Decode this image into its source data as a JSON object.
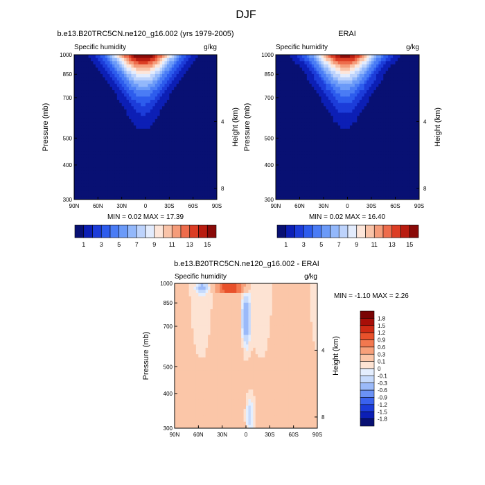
{
  "figure": {
    "title": "DJF"
  },
  "colors": {
    "abs_scale": [
      "#081073",
      "#0c1fb5",
      "#1c3cd9",
      "#2d5ced",
      "#4a7cf5",
      "#6b9af8",
      "#93b8fb",
      "#bdd3fc",
      "#e3ecfd",
      "#fde6da",
      "#f9c3a8",
      "#f59c7a",
      "#ee6c4c",
      "#dc3d24",
      "#b91c10",
      "#8a0a08"
    ],
    "diff_scale": [
      "#081073",
      "#0c1fb5",
      "#1c3cd9",
      "#3a62ee",
      "#6b92f6",
      "#9bbaf9",
      "#c6dafc",
      "#e4eefe",
      "#fde3d3",
      "#fbc6a8",
      "#f7a07a",
      "#f2784f",
      "#e8512b",
      "#cf2a14",
      "#a80e08",
      "#7a0404"
    ]
  },
  "chart_data": [
    {
      "type": "heatmap",
      "title": "b.e13.B20TRC5CN.ne120_g16.002 (yrs 1979-2005)",
      "left_label": "Specific humidity",
      "right_label": "g/kg",
      "ylabel": "Pressure (mb)",
      "ylabel_right": "Height (km)",
      "x_ticks": [
        "90N",
        "60N",
        "30N",
        "0",
        "30S",
        "60S",
        "90S"
      ],
      "xlim": [
        90,
        -90
      ],
      "y_ticks": [
        "300",
        "400",
        "500",
        "700",
        "850",
        "1000"
      ],
      "y_tick_values": [
        300,
        400,
        500,
        700,
        850,
        1000
      ],
      "ylim": [
        1000,
        300
      ],
      "height_ticks": [
        "8",
        "4"
      ],
      "height_tick_values": [
        8,
        4
      ],
      "stats": "MIN =  0.02  MAX = 17.39",
      "min": 0.02,
      "max": 17.39,
      "colorbar_labels": [
        "1",
        "3",
        "5",
        "7",
        "9",
        "11",
        "13",
        "15"
      ],
      "levels": [
        1,
        2,
        3,
        4,
        5,
        6,
        7,
        8,
        9,
        10,
        11,
        12,
        13,
        14,
        15
      ]
    },
    {
      "type": "heatmap",
      "title": "ERAI",
      "left_label": "Specific humidity",
      "right_label": "g/kg",
      "ylabel": "Pressure (mb)",
      "ylabel_right": "Height (km)",
      "x_ticks": [
        "90N",
        "60N",
        "30N",
        "0",
        "30S",
        "60S",
        "90S"
      ],
      "xlim": [
        90,
        -90
      ],
      "y_ticks": [
        "300",
        "400",
        "500",
        "700",
        "850",
        "1000"
      ],
      "y_tick_values": [
        300,
        400,
        500,
        700,
        850,
        1000
      ],
      "ylim": [
        1000,
        300
      ],
      "height_ticks": [
        "8",
        "4"
      ],
      "height_tick_values": [
        8,
        4
      ],
      "stats": "MIN =  0.02  MAX = 16.40",
      "min": 0.02,
      "max": 16.4,
      "colorbar_labels": [
        "1",
        "3",
        "5",
        "7",
        "9",
        "11",
        "13",
        "15"
      ],
      "levels": [
        1,
        2,
        3,
        4,
        5,
        6,
        7,
        8,
        9,
        10,
        11,
        12,
        13,
        14,
        15
      ]
    },
    {
      "type": "heatmap",
      "title": "b.e13.B20TRC5CN.ne120_g16.002 - ERAI",
      "left_label": "Specific humidity",
      "right_label": "g/kg",
      "ylabel": "Pressure (mb)",
      "ylabel_right": "Height (km)",
      "x_ticks": [
        "90N",
        "60N",
        "30N",
        "0",
        "30S",
        "60S",
        "90S"
      ],
      "xlim": [
        90,
        -90
      ],
      "y_ticks": [
        "300",
        "400",
        "500",
        "700",
        "850",
        "1000"
      ],
      "y_tick_values": [
        300,
        400,
        500,
        700,
        850,
        1000
      ],
      "ylim": [
        1000,
        300
      ],
      "height_ticks": [
        "8",
        "4"
      ],
      "height_tick_values": [
        8,
        4
      ],
      "stats": "MIN = -1.10  MAX =   2.26",
      "min": -1.1,
      "max": 2.26,
      "colorbar_labels": [
        "1.8",
        "1.5",
        "1.2",
        "0.9",
        "0.6",
        "0.3",
        "0.1",
        "0",
        "-0.1",
        "-0.3",
        "-0.6",
        "-0.9",
        "-1.2",
        "-1.5",
        "-1.8"
      ],
      "levels": [
        -1.8,
        -1.5,
        -1.2,
        -0.9,
        -0.6,
        -0.3,
        -0.1,
        0,
        0.1,
        0.3,
        0.6,
        0.9,
        1.2,
        1.5,
        1.8
      ]
    }
  ]
}
